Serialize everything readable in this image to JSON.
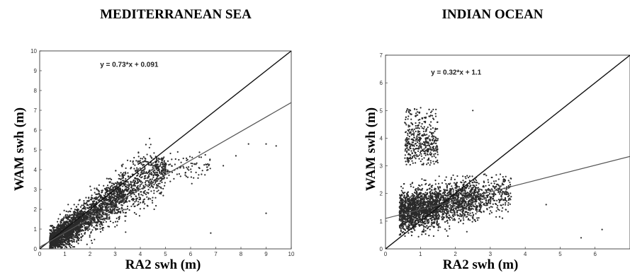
{
  "chart_data": [
    {
      "type": "scatter",
      "title": "MEDITERRANEAN SEA",
      "xlabel": "RA2 swh (m)",
      "ylabel": "WAM swh (m)",
      "xlim": [
        0,
        10
      ],
      "ylim": [
        0,
        10
      ],
      "xticks": [
        "0",
        "1",
        "2",
        "3",
        "4",
        "5",
        "6",
        "7",
        "8",
        "9",
        "10"
      ],
      "yticks": [
        "0",
        "1",
        "2",
        "3",
        "4",
        "5",
        "6",
        "7",
        "8",
        "9",
        "10"
      ],
      "annotation": "y = 0.73*x + 0.091",
      "fit": {
        "slope": 0.73,
        "intercept": 0.091
      },
      "identity_line": true,
      "point_count": 3200,
      "clusters": [
        {
          "x_range": [
            0.4,
            5.5
          ],
          "relation": "y ≈ 0.85x, spread ±0.6"
        }
      ],
      "outliers": [
        [
          6.8,
          0.8
        ],
        [
          9.0,
          1.8
        ],
        [
          8.3,
          5.3
        ],
        [
          9.0,
          5.3
        ],
        [
          9.4,
          5.2
        ],
        [
          7.3,
          4.2
        ],
        [
          7.8,
          4.7
        ]
      ]
    },
    {
      "type": "scatter",
      "title": "INDIAN OCEAN",
      "xlabel": "RA2 swh (m)",
      "ylabel": "WAM swh (m)",
      "xlim": [
        0,
        7
      ],
      "ylim": [
        0,
        7
      ],
      "xticks": [
        "0",
        "1",
        "2",
        "3",
        "4",
        "5",
        "6"
      ],
      "yticks": [
        "0",
        "1",
        "2",
        "3",
        "4",
        "5",
        "6",
        "7"
      ],
      "annotation": "y = 0.32*x + 1.1",
      "fit": {
        "slope": 0.32,
        "intercept": 1.1
      },
      "identity_line": true,
      "point_count": 3000,
      "clusters": [
        {
          "x_range": [
            0.4,
            3.5
          ],
          "y_range": [
            0.4,
            2.6
          ],
          "relation": "main cloud"
        },
        {
          "x_range": [
            0.5,
            1.5
          ],
          "y_range": [
            3.0,
            5.1
          ],
          "relation": "upper cluster"
        }
      ],
      "outliers": [
        [
          4.6,
          1.6
        ],
        [
          5.6,
          0.4
        ],
        [
          6.2,
          0.7
        ],
        [
          2.5,
          5.0
        ]
      ]
    }
  ]
}
